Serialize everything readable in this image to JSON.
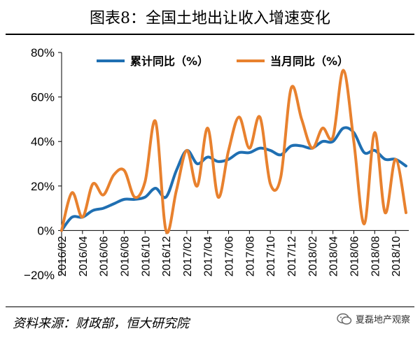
{
  "title": "图表8：全国土地出让收入增速变化",
  "source": "资料来源：财政部，恒大研究院",
  "watermark": {
    "text": "夏磊地产观察",
    "icon": "wechat-icon"
  },
  "colors": {
    "cumulative": "#1f6fb2",
    "monthly": "#e8812e"
  },
  "chart_data": {
    "type": "line",
    "ylim": [
      -20,
      80
    ],
    "yticks": [
      "80%",
      "60%",
      "40%",
      "20%",
      "0%",
      "−20%"
    ],
    "ytick_values": [
      80,
      60,
      40,
      20,
      0,
      -20
    ],
    "x": [
      "2016/02",
      "2016/03",
      "2016/04",
      "2016/05",
      "2016/06",
      "2016/07",
      "2016/08",
      "2016/09",
      "2016/10",
      "2016/11",
      "2016/12",
      "2017/01",
      "2017/02",
      "2017/03",
      "2017/04",
      "2017/05",
      "2017/06",
      "2017/07",
      "2017/08",
      "2017/09",
      "2017/10",
      "2017/11",
      "2017/12",
      "2018/01",
      "2018/02",
      "2018/03",
      "2018/04",
      "2018/05",
      "2018/06",
      "2018/07",
      "2018/08",
      "2018/09",
      "2018/10",
      "2018/11"
    ],
    "xtick_labels": [
      "2016/02",
      "2016/04",
      "2016/06",
      "2016/08",
      "2016/10",
      "2016/12",
      "2017/02",
      "2017/04",
      "2017/06",
      "2017/08",
      "2017/10",
      "2017/12",
      "2018/02",
      "2018/04",
      "2018/06",
      "2018/08",
      "2018/10"
    ],
    "series": [
      {
        "name": "累计同比（%）",
        "color": "#1f6fb2",
        "values": [
          0,
          6,
          6,
          9,
          10,
          12,
          14,
          14,
          15,
          19,
          15,
          27,
          36,
          30,
          33,
          31,
          32,
          35,
          35,
          37,
          36,
          34,
          38,
          38,
          37,
          40,
          40,
          46,
          44,
          35,
          36,
          32,
          32,
          29
        ]
      },
      {
        "name": "当月同比（%）",
        "color": "#e8812e",
        "values": [
          0,
          17,
          6,
          21,
          16,
          25,
          27,
          15,
          22,
          49,
          0,
          18,
          36,
          20,
          46,
          15,
          36,
          51,
          37,
          51,
          21,
          24,
          64,
          50,
          37,
          46,
          42,
          72,
          40,
          3,
          44,
          8,
          32,
          8
        ]
      }
    ],
    "legend": "top"
  }
}
